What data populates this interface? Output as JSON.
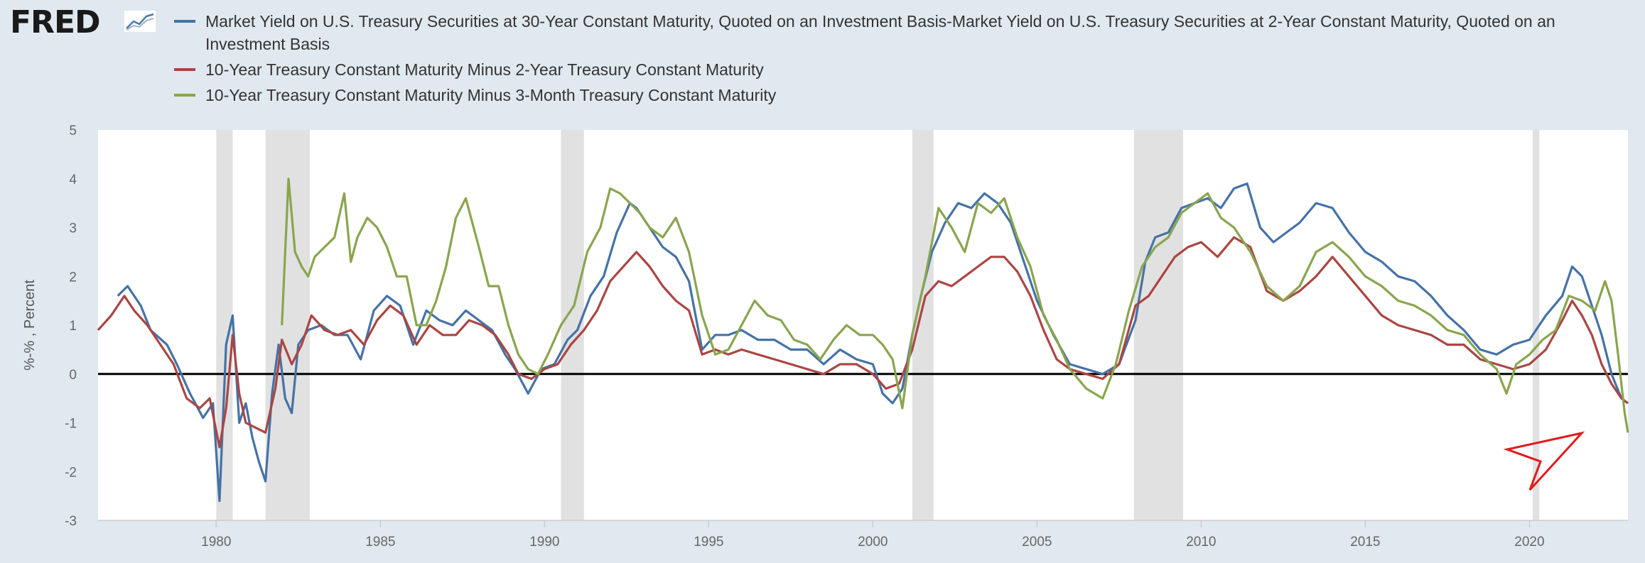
{
  "brand": {
    "logo_text": "FRED"
  },
  "legend": [
    {
      "label": "Market Yield on U.S. Treasury Securities at 30-Year Constant Maturity, Quoted on an Investment Basis-Market Yield on U.S. Treasury Securities at 2-Year Constant Maturity, Quoted on an Investment Basis",
      "color": "#4572a7"
    },
    {
      "label": "10-Year Treasury Constant Maturity Minus 2-Year Treasury Constant Maturity",
      "color": "#aa4643"
    },
    {
      "label": "10-Year Treasury Constant Maturity Minus 3-Month Treasury Constant Maturity",
      "color": "#89a54e"
    }
  ],
  "chart_data": {
    "type": "line",
    "title": "",
    "xlabel": "",
    "ylabel": "%-% , Percent",
    "xlim": [
      1976.4,
      2023.0
    ],
    "ylim": [
      -3,
      5
    ],
    "x_ticks": [
      1980,
      1985,
      1990,
      1995,
      2000,
      2005,
      2010,
      2015,
      2020
    ],
    "y_ticks": [
      -3,
      -2,
      -1,
      0,
      1,
      2,
      3,
      4,
      5
    ],
    "zero_line": true,
    "grid": false,
    "legend_position": "top",
    "recessions": [
      [
        1980.0,
        1980.5
      ],
      [
        1981.5,
        1982.85
      ],
      [
        1990.5,
        1991.2
      ],
      [
        2001.2,
        2001.85
      ],
      [
        2007.95,
        2009.45
      ],
      [
        2020.1,
        2020.3
      ]
    ],
    "series": [
      {
        "name": "Market Yield on U.S. Treasury Securities at 30-Year Constant Maturity, Quoted on an Investment Basis-Market Yield on U.S. Treasury Securities at 2-Year Constant Maturity, Quoted on an Investment Basis",
        "color": "#4572a7",
        "x": [
          1977.0,
          1977.3,
          1977.7,
          1978.0,
          1978.5,
          1978.8,
          1979.2,
          1979.6,
          1979.9,
          1980.1,
          1980.3,
          1980.5,
          1980.7,
          1980.9,
          1981.1,
          1981.3,
          1981.5,
          1981.7,
          1981.9,
          1982.1,
          1982.3,
          1982.5,
          1982.8,
          1983.2,
          1983.6,
          1984.0,
          1984.4,
          1984.8,
          1985.2,
          1985.6,
          1986.0,
          1986.4,
          1986.8,
          1987.2,
          1987.6,
          1988.0,
          1988.4,
          1988.8,
          1989.1,
          1989.5,
          1989.9,
          1990.3,
          1990.7,
          1991.0,
          1991.4,
          1991.8,
          1992.2,
          1992.6,
          1992.8,
          1993.2,
          1993.6,
          1994.0,
          1994.4,
          1994.8,
          1995.2,
          1995.6,
          1996.0,
          1996.5,
          1997.0,
          1997.5,
          1998.0,
          1998.5,
          1999.0,
          1999.5,
          2000.0,
          2000.3,
          2000.6,
          2000.9,
          2001.2,
          2001.5,
          2001.8,
          2002.2,
          2002.6,
          2003.0,
          2003.4,
          2003.8,
          2004.2,
          2004.6,
          2005.0,
          2005.5,
          2006.0,
          2006.5,
          2007.0,
          2007.5,
          2008.0,
          2008.3,
          2008.6,
          2009.0,
          2009.4,
          2009.8,
          2010.2,
          2010.6,
          2011.0,
          2011.4,
          2011.8,
          2012.2,
          2012.6,
          2013.0,
          2013.5,
          2014.0,
          2014.5,
          2015.0,
          2015.5,
          2016.0,
          2016.5,
          2017.0,
          2017.5,
          2018.0,
          2018.5,
          2019.0,
          2019.5,
          2020.0,
          2020.5,
          2021.0,
          2021.3,
          2021.6,
          2021.9,
          2022.2,
          2022.5,
          2022.8,
          2023.0
        ],
        "values": [
          1.6,
          1.8,
          1.4,
          0.9,
          0.6,
          0.2,
          -0.4,
          -0.9,
          -0.6,
          -2.6,
          0.6,
          1.2,
          -1.0,
          -0.6,
          -1.3,
          -1.8,
          -2.2,
          -0.4,
          0.6,
          -0.5,
          -0.8,
          0.6,
          0.9,
          1.0,
          0.8,
          0.8,
          0.3,
          1.3,
          1.6,
          1.4,
          0.6,
          1.3,
          1.1,
          1.0,
          1.3,
          1.1,
          0.9,
          0.4,
          0.1,
          -0.4,
          0.1,
          0.2,
          0.7,
          0.9,
          1.6,
          2.0,
          2.9,
          3.5,
          3.4,
          3.0,
          2.6,
          2.4,
          1.9,
          0.5,
          0.8,
          0.8,
          0.9,
          0.7,
          0.7,
          0.5,
          0.5,
          0.2,
          0.5,
          0.3,
          0.2,
          -0.4,
          -0.6,
          -0.3,
          0.8,
          1.7,
          2.5,
          3.1,
          3.5,
          3.4,
          3.7,
          3.5,
          3.1,
          2.3,
          1.5,
          0.8,
          0.2,
          0.1,
          0.0,
          0.2,
          1.1,
          2.3,
          2.8,
          2.9,
          3.4,
          3.5,
          3.6,
          3.4,
          3.8,
          3.9,
          3.0,
          2.7,
          2.9,
          3.1,
          3.5,
          3.4,
          2.9,
          2.5,
          2.3,
          2.0,
          1.9,
          1.6,
          1.2,
          0.9,
          0.5,
          0.4,
          0.6,
          0.7,
          1.2,
          1.6,
          2.2,
          2.0,
          1.4,
          0.8,
          0.0,
          -0.5,
          -0.6
        ]
      },
      {
        "name": "10-Year Treasury Constant Maturity Minus 2-Year Treasury Constant Maturity",
        "color": "#aa4643",
        "x": [
          1976.4,
          1976.8,
          1977.2,
          1977.5,
          1977.9,
          1978.3,
          1978.7,
          1979.1,
          1979.5,
          1979.8,
          1980.1,
          1980.3,
          1980.5,
          1980.7,
          1980.9,
          1981.2,
          1981.5,
          1981.8,
          1982.0,
          1982.3,
          1982.6,
          1982.9,
          1983.3,
          1983.7,
          1984.1,
          1984.5,
          1984.9,
          1985.3,
          1985.7,
          1986.1,
          1986.5,
          1986.9,
          1987.3,
          1987.7,
          1988.1,
          1988.5,
          1988.9,
          1989.2,
          1989.6,
          1990.0,
          1990.4,
          1990.8,
          1991.2,
          1991.6,
          1992.0,
          1992.4,
          1992.8,
          1993.2,
          1993.6,
          1994.0,
          1994.4,
          1994.8,
          1995.2,
          1995.6,
          1996.0,
          1996.5,
          1997.0,
          1997.5,
          1998.0,
          1998.5,
          1999.0,
          1999.5,
          2000.0,
          2000.4,
          2000.8,
          2001.2,
          2001.6,
          2002.0,
          2002.4,
          2002.8,
          2003.2,
          2003.6,
          2004.0,
          2004.4,
          2004.8,
          2005.2,
          2005.6,
          2006.0,
          2006.5,
          2007.0,
          2007.5,
          2008.0,
          2008.4,
          2008.8,
          2009.2,
          2009.6,
          2010.0,
          2010.5,
          2011.0,
          2011.5,
          2012.0,
          2012.5,
          2013.0,
          2013.5,
          2014.0,
          2014.5,
          2015.0,
          2015.5,
          2016.0,
          2016.5,
          2017.0,
          2017.5,
          2018.0,
          2018.5,
          2019.0,
          2019.5,
          2020.0,
          2020.5,
          2021.0,
          2021.3,
          2021.6,
          2021.9,
          2022.2,
          2022.5,
          2022.8,
          2023.0
        ],
        "values": [
          0.9,
          1.2,
          1.6,
          1.3,
          1.0,
          0.6,
          0.2,
          -0.5,
          -0.7,
          -0.5,
          -1.5,
          -0.7,
          0.8,
          -0.4,
          -1.0,
          -1.1,
          -1.2,
          -0.3,
          0.7,
          0.2,
          0.6,
          1.2,
          0.9,
          0.8,
          0.9,
          0.6,
          1.1,
          1.4,
          1.2,
          0.6,
          1.0,
          0.8,
          0.8,
          1.1,
          1.0,
          0.8,
          0.4,
          0.0,
          -0.1,
          0.1,
          0.2,
          0.6,
          0.9,
          1.3,
          1.9,
          2.2,
          2.5,
          2.2,
          1.8,
          1.5,
          1.3,
          0.4,
          0.5,
          0.4,
          0.5,
          0.4,
          0.3,
          0.2,
          0.1,
          0.0,
          0.2,
          0.2,
          0.0,
          -0.3,
          -0.2,
          0.5,
          1.6,
          1.9,
          1.8,
          2.0,
          2.2,
          2.4,
          2.4,
          2.1,
          1.6,
          0.9,
          0.3,
          0.1,
          0.0,
          -0.1,
          0.2,
          1.4,
          1.6,
          2.0,
          2.4,
          2.6,
          2.7,
          2.4,
          2.8,
          2.6,
          1.7,
          1.5,
          1.7,
          2.0,
          2.4,
          2.0,
          1.6,
          1.2,
          1.0,
          0.9,
          0.8,
          0.6,
          0.6,
          0.3,
          0.2,
          0.1,
          0.2,
          0.5,
          1.1,
          1.5,
          1.2,
          0.8,
          0.2,
          -0.2,
          -0.5,
          -0.6
        ]
      },
      {
        "name": "10-Year Treasury Constant Maturity Minus 3-Month Treasury Constant Maturity",
        "color": "#89a54e",
        "x": [
          1982.0,
          1982.2,
          1982.4,
          1982.6,
          1982.8,
          1983.0,
          1983.3,
          1983.6,
          1983.9,
          1984.1,
          1984.3,
          1984.6,
          1984.9,
          1985.2,
          1985.5,
          1985.8,
          1986.1,
          1986.4,
          1986.7,
          1987.0,
          1987.3,
          1987.6,
          1988.0,
          1988.3,
          1988.6,
          1988.9,
          1989.2,
          1989.5,
          1989.8,
          1990.1,
          1990.5,
          1990.9,
          1991.3,
          1991.7,
          1992.0,
          1992.3,
          1992.6,
          1992.9,
          1993.2,
          1993.6,
          1994.0,
          1994.4,
          1994.8,
          1995.2,
          1995.6,
          1996.0,
          1996.4,
          1996.8,
          1997.2,
          1997.6,
          1998.0,
          1998.4,
          1998.8,
          1999.2,
          1999.6,
          2000.0,
          2000.3,
          2000.6,
          2000.9,
          2001.2,
          2001.6,
          2002.0,
          2002.4,
          2002.8,
          2003.2,
          2003.6,
          2004.0,
          2004.4,
          2004.8,
          2005.2,
          2005.6,
          2006.0,
          2006.5,
          2007.0,
          2007.4,
          2007.8,
          2008.2,
          2008.6,
          2009.0,
          2009.4,
          2009.8,
          2010.2,
          2010.6,
          2011.0,
          2011.5,
          2012.0,
          2012.5,
          2013.0,
          2013.5,
          2014.0,
          2014.5,
          2015.0,
          2015.5,
          2016.0,
          2016.5,
          2017.0,
          2017.5,
          2018.0,
          2018.5,
          2019.0,
          2019.3,
          2019.6,
          2020.0,
          2020.4,
          2020.8,
          2021.2,
          2021.6,
          2022.0,
          2022.3,
          2022.5,
          2022.7,
          2022.9,
          2023.0
        ],
        "values": [
          1.0,
          4.0,
          2.5,
          2.2,
          2.0,
          2.4,
          2.6,
          2.8,
          3.7,
          2.3,
          2.8,
          3.2,
          3.0,
          2.6,
          2.0,
          2.0,
          1.0,
          1.0,
          1.5,
          2.2,
          3.2,
          3.6,
          2.6,
          1.8,
          1.8,
          1.0,
          0.4,
          0.1,
          0.0,
          0.4,
          1.0,
          1.4,
          2.5,
          3.0,
          3.8,
          3.7,
          3.5,
          3.3,
          3.0,
          2.8,
          3.2,
          2.5,
          1.2,
          0.4,
          0.5,
          1.0,
          1.5,
          1.2,
          1.1,
          0.7,
          0.6,
          0.3,
          0.7,
          1.0,
          0.8,
          0.8,
          0.6,
          0.3,
          -0.7,
          0.8,
          2.0,
          3.4,
          3.0,
          2.5,
          3.5,
          3.3,
          3.6,
          2.8,
          2.2,
          1.2,
          0.7,
          0.1,
          -0.3,
          -0.5,
          0.2,
          1.3,
          2.2,
          2.6,
          2.8,
          3.3,
          3.5,
          3.7,
          3.2,
          3.0,
          2.5,
          1.8,
          1.5,
          1.8,
          2.5,
          2.7,
          2.4,
          2.0,
          1.8,
          1.5,
          1.4,
          1.2,
          0.9,
          0.8,
          0.4,
          0.1,
          -0.4,
          0.2,
          0.4,
          0.7,
          0.9,
          1.6,
          1.5,
          1.3,
          1.9,
          1.5,
          0.4,
          -0.8,
          -1.2
        ]
      }
    ],
    "annotation": {
      "type": "arrow",
      "color": "#e31a1c"
    }
  }
}
